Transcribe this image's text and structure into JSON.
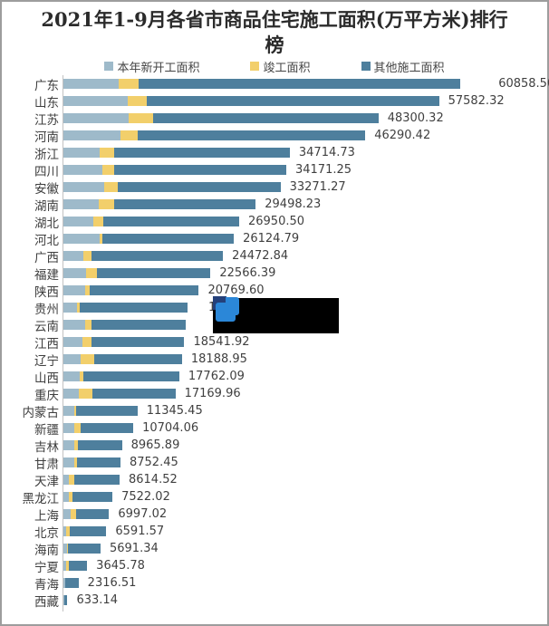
{
  "frame": {
    "title_line1": "2021年1-9月各省市商品住宅施工面积(万平方米)排行",
    "title_line2": "榜"
  },
  "chart_data": {
    "type": "bar",
    "variant": "horizontal-stacked",
    "title": "2021年1-9月各省市商品住宅施工面积(万平方米)排行榜",
    "legend_position": "top",
    "value_axis_visible": false,
    "grid": false,
    "xlim": [
      0,
      63000
    ],
    "categories": [
      "广东",
      "山东",
      "江苏",
      "河南",
      "浙江",
      "四川",
      "安徽",
      "湖南",
      "湖北",
      "河北",
      "广西",
      "福建",
      "陕西",
      "贵州",
      "云南",
      "江西",
      "辽宁",
      "山西",
      "重庆",
      "内蒙古",
      "新疆",
      "吉林",
      "甘肃",
      "天津",
      "黑龙江",
      "上海",
      "北京",
      "海南",
      "宁夏",
      "青海",
      "西藏"
    ],
    "value_labels": [
      "60858.50",
      "57582.32",
      "48300.32",
      "46290.42",
      "34714.73",
      "34171.25",
      "33271.27",
      "29498.23",
      "26950.50",
      "26124.79",
      "24472.84",
      "22566.39",
      "20769.60",
      "1",
      "",
      "18541.92",
      "18188.95",
      "17762.09",
      "17169.96",
      "11345.45",
      "10704.06",
      "8965.89",
      "8752.45",
      "8614.52",
      "7522.02",
      "6997.02",
      "6591.57",
      "5691.34",
      "3645.78",
      "2316.51",
      "633.14"
    ],
    "series": [
      {
        "name": "本年新开工面积",
        "color": "#9EBACA",
        "values": [
          8400,
          9830,
          9950,
          8770,
          5490,
          5920,
          6180,
          5380,
          4570,
          5490,
          3070,
          3450,
          3280,
          2100,
          3330,
          2960,
          2700,
          2530,
          2420,
          1610,
          1720,
          1720,
          1610,
          810,
          810,
          1080,
          380,
          540,
          380,
          250,
          90
        ]
      },
      {
        "name": "竣工面积",
        "color": "#F2CF6B",
        "values": [
          3150,
          2900,
          3750,
          2680,
          2310,
          1880,
          2150,
          2420,
          1610,
          530,
          1240,
          1710,
          810,
          380,
          970,
          1350,
          1990,
          540,
          1990,
          390,
          970,
          540,
          540,
          810,
          540,
          920,
          540,
          150,
          430,
          100,
          40
        ]
      },
      {
        "name": "其他施工面积",
        "color": "#4E7F9D",
        "values": [
          49308,
          44852,
          34600,
          34840,
          26915,
          26371,
          24941,
          21698,
          20770,
          20105,
          20163,
          17406,
          16680,
          16560,
          14490,
          14232,
          13499,
          14692,
          12760,
          9345,
          8014,
          6706,
          6602,
          6995,
          6172,
          4997,
          5672,
          5001,
          2836,
          1967,
          503
        ]
      }
    ],
    "notes": "value labels for 贵州 (only leading '1' visible) and 云南 are covered by a black redaction box"
  },
  "overlay": {
    "redaction_box": "black-redaction-rectangle",
    "icon": "blue-cursor-icon",
    "icon_colors": {
      "navy": "#24407A",
      "blue": "#2B87D8"
    }
  }
}
